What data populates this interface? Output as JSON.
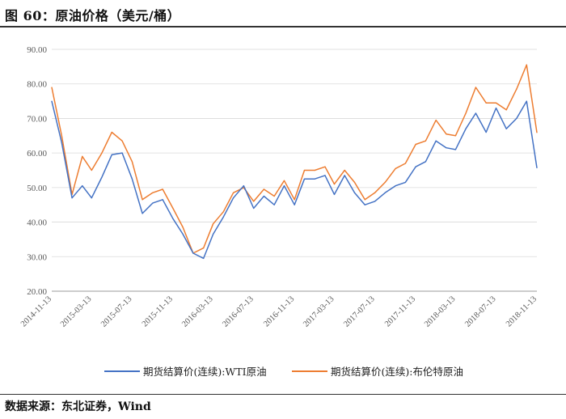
{
  "figure": {
    "title": "图 60：原油价格（美元/桶）",
    "source": "数据来源：东北证券，Wind"
  },
  "chart_data": {
    "type": "line",
    "title": "",
    "xlabel": "",
    "ylabel": "",
    "ylim": [
      20,
      90
    ],
    "yticks": [
      "20.00",
      "30.00",
      "40.00",
      "50.00",
      "60.00",
      "70.00",
      "80.00",
      "90.00"
    ],
    "xticks": [
      "2014-11-13",
      "2015-03-13",
      "2015-07-13",
      "2015-11-13",
      "2016-03-13",
      "2016-07-13",
      "2016-11-13",
      "2017-03-13",
      "2017-07-13",
      "2017-11-13",
      "2018-03-13",
      "2018-07-13",
      "2018-11-13"
    ],
    "legend_position": "bottom",
    "grid": "horizontal",
    "x": [
      "2014-11-13",
      "2014-12-13",
      "2015-01-13",
      "2015-02-13",
      "2015-03-13",
      "2015-04-13",
      "2015-05-13",
      "2015-06-13",
      "2015-07-13",
      "2015-08-13",
      "2015-09-13",
      "2015-10-13",
      "2015-11-13",
      "2015-12-13",
      "2016-01-13",
      "2016-02-13",
      "2016-03-13",
      "2016-04-13",
      "2016-05-13",
      "2016-06-13",
      "2016-07-13",
      "2016-08-13",
      "2016-09-13",
      "2016-10-13",
      "2016-11-13",
      "2016-12-13",
      "2017-01-13",
      "2017-02-13",
      "2017-03-13",
      "2017-04-13",
      "2017-05-13",
      "2017-06-13",
      "2017-07-13",
      "2017-08-13",
      "2017-09-13",
      "2017-10-13",
      "2017-11-13",
      "2017-12-13",
      "2018-01-13",
      "2018-02-13",
      "2018-03-13",
      "2018-04-13",
      "2018-05-13",
      "2018-06-13",
      "2018-07-13",
      "2018-08-13",
      "2018-09-13",
      "2018-10-13",
      "2018-11-13"
    ],
    "series": [
      {
        "name": "期货结算价(连续):WTI原油",
        "color": "#4472C4",
        "values": [
          75.0,
          63.0,
          47.0,
          50.5,
          47.0,
          53.0,
          59.5,
          60.0,
          52.5,
          42.5,
          45.5,
          46.5,
          41.0,
          36.5,
          31.0,
          29.5,
          36.5,
          41.5,
          47.0,
          50.5,
          44.0,
          47.5,
          45.0,
          50.5,
          45.0,
          52.5,
          52.5,
          53.5,
          48.0,
          53.5,
          48.5,
          45.0,
          46.0,
          48.5,
          50.5,
          51.5,
          56.0,
          57.5,
          63.5,
          61.5,
          61.0,
          67.0,
          71.5,
          66.0,
          73.0,
          67.0,
          70.0,
          75.0,
          55.7
        ]
      },
      {
        "name": "期货结算价(连续):布伦特原油",
        "color": "#ED7D31",
        "values": [
          79.0,
          65.0,
          48.0,
          59.0,
          55.0,
          60.0,
          66.0,
          63.5,
          57.5,
          46.5,
          48.5,
          49.5,
          44.0,
          38.5,
          31.0,
          32.5,
          39.5,
          43.0,
          48.5,
          50.0,
          46.0,
          49.5,
          47.5,
          52.0,
          46.5,
          55.0,
          55.0,
          56.0,
          51.0,
          55.0,
          51.5,
          46.5,
          48.5,
          51.5,
          55.5,
          57.0,
          62.5,
          63.5,
          69.5,
          65.5,
          65.0,
          71.5,
          79.0,
          74.5,
          74.5,
          72.5,
          78.5,
          85.5,
          65.9
        ]
      }
    ]
  }
}
